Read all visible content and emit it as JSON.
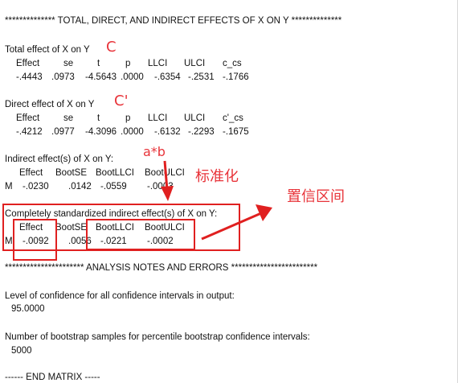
{
  "header": "************** TOTAL, DIRECT, AND INDIRECT EFFECTS OF X ON Y **************",
  "total": {
    "title": "Total effect of X on Y",
    "cols": [
      "Effect",
      "se",
      "t",
      "p",
      "LLCI",
      "ULCI",
      "c_cs"
    ],
    "vals": [
      "-.4443",
      ".0973",
      "-4.5643",
      ".0000",
      "-.6354",
      "-.2531",
      "-.1766"
    ]
  },
  "direct": {
    "title": "Direct effect of X on Y",
    "cols": [
      "Effect",
      "se",
      "t",
      "p",
      "LLCI",
      "ULCI",
      "c'_cs"
    ],
    "vals": [
      "-.4212",
      ".0977",
      "-4.3096",
      ".0000",
      "-.6132",
      "-.2293",
      "-.1675"
    ]
  },
  "indirect": {
    "title": "Indirect effect(s) of X on Y:",
    "cols": [
      "Effect",
      "BootSE",
      "BootLLCI",
      "BootULCI"
    ],
    "row_label": "M",
    "vals": [
      "-.0230",
      ".0142",
      "-.0559",
      "-.0003"
    ]
  },
  "standardized": {
    "title": "Completely standardized indirect effect(s) of X on Y:",
    "cols": [
      "Effect",
      "BootSE",
      "BootLLCI",
      "BootULCI"
    ],
    "row_label": "M",
    "vals": [
      "-.0092",
      ".0056",
      "-.0221",
      "-.0002"
    ]
  },
  "notes_header": "********************** ANALYSIS NOTES AND ERRORS ************************",
  "confidence": {
    "label": "Level of confidence for all confidence intervals in output:",
    "value": "95.0000"
  },
  "bootstrap": {
    "label": "Number of bootstrap samples for percentile bootstrap confidence intervals:",
    "value": "5000"
  },
  "end": "------ END MATRIX -----",
  "annotations": {
    "c": "C",
    "c_prime": "C'",
    "ab": "a*b",
    "standardized_note": "标准化",
    "ci_note": "置信区间"
  },
  "colors": {
    "annotation": "#e02020",
    "text": "#111111"
  }
}
